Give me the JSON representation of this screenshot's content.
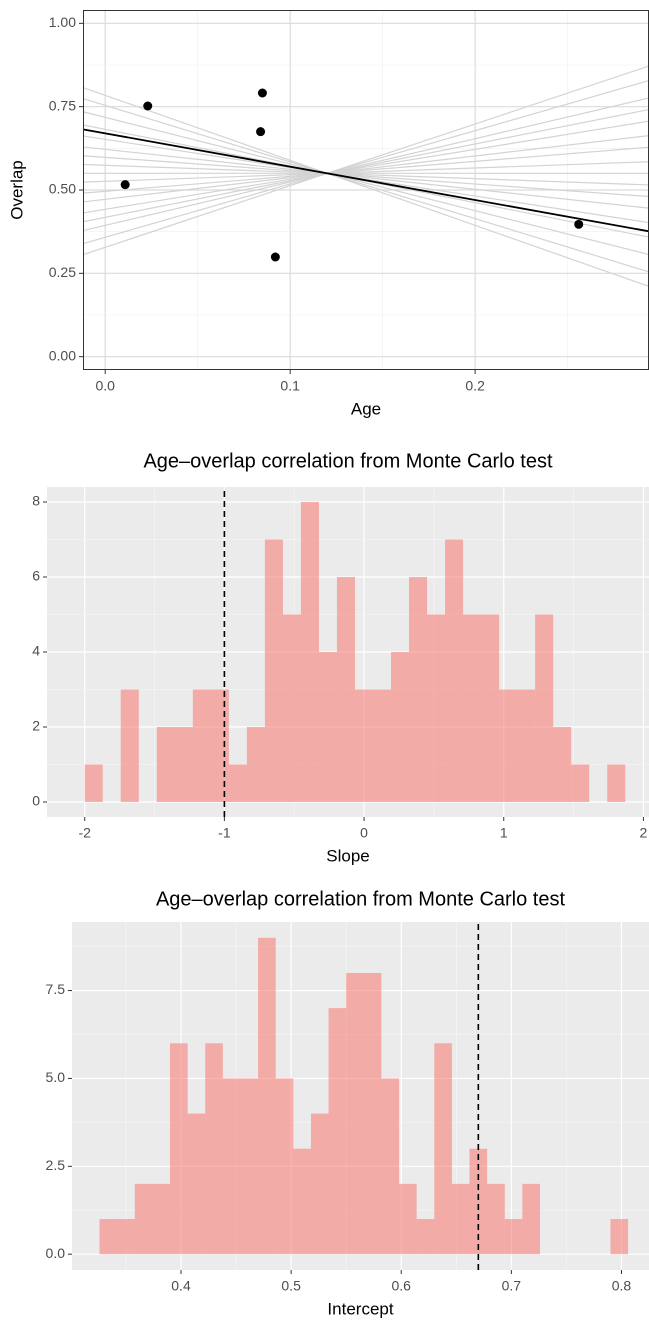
{
  "chart_data": [
    {
      "type": "scatter",
      "x_label": "Age",
      "y_label": "Overlap",
      "x": [
        0.0108,
        0.023,
        0.085,
        0.084,
        0.092,
        0.256
      ],
      "values": [
        0.516,
        0.752,
        0.791,
        0.675,
        0.299,
        0.397
      ],
      "color": "#000000",
      "xlim": [
        -0.012,
        0.294
      ],
      "ylim": [
        -0.04,
        1.04
      ],
      "xticks": [
        {
          "value": 0,
          "label": "0.0"
        },
        0.1,
        0.2
      ],
      "yticks": [
        {
          "value": 0,
          "label": "0.00"
        },
        0.25,
        {
          "value": 0.5,
          "label": "0.50"
        },
        0.75,
        {
          "value": 1,
          "label": "1.00"
        }
      ],
      "grid": true,
      "minor_grid": true,
      "fit_line": {
        "slope": -1.0,
        "intercept": 0.67,
        "color": "#000000"
      },
      "sample_lines": {
        "color": "#d3d3d3",
        "slopes": [
          -1.95,
          -1.7,
          -1.4,
          -1.1,
          -0.85,
          -0.6,
          -0.4,
          -0.2,
          0,
          0.2,
          0.45,
          0.65,
          0.9,
          1.1,
          1.3,
          1.6,
          1.85
        ],
        "intercepts": [
          0.784,
          0.754,
          0.718,
          0.682,
          0.652,
          0.622,
          0.598,
          0.574,
          0.55,
          0.526,
          0.496,
          0.472,
          0.442,
          0.418,
          0.394,
          0.358,
          0.328
        ]
      }
    },
    {
      "type": "histogram",
      "title": "Age–overlap correlation from Monte Carlo test",
      "x_label": "Slope",
      "bins": [
        -2,
        -1.871,
        -1.742,
        -1.613,
        -1.484,
        -1.355,
        -1.226,
        -1.097,
        -0.968,
        -0.839,
        -0.71,
        -0.581,
        -0.452,
        -0.323,
        -0.194,
        -0.065,
        0.064,
        0.193,
        0.322,
        0.451,
        0.58,
        0.709,
        0.838,
        0.967,
        1.096,
        1.225,
        1.354,
        1.483,
        1.612,
        1.741,
        1.87
      ],
      "values": [
        1,
        0,
        3,
        0,
        2,
        2,
        3,
        3,
        1,
        2,
        7,
        5,
        8,
        4,
        6,
        3,
        3,
        4,
        6,
        5,
        7,
        5,
        5,
        3,
        3,
        5,
        2,
        1,
        0,
        1
      ],
      "color": "#f8766d",
      "vline": -1,
      "xlim": [
        -2.27,
        2.04
      ],
      "ylim": [
        -0.4,
        8.4
      ],
      "xticks": [
        -2,
        -1,
        0,
        1,
        2
      ],
      "yticks": [
        0,
        2,
        4,
        6,
        8
      ],
      "grid": true,
      "minor_grid": true
    },
    {
      "type": "histogram",
      "title": "Age–overlap correlation from Monte Carlo test",
      "x_label": "Intercept",
      "bins": [
        0.326,
        0.342,
        0.358,
        0.374,
        0.39,
        0.406,
        0.422,
        0.438,
        0.454,
        0.47,
        0.486,
        0.502,
        0.518,
        0.534,
        0.55,
        0.566,
        0.582,
        0.598,
        0.614,
        0.63,
        0.646,
        0.662,
        0.678,
        0.694,
        0.71,
        0.726,
        0.742,
        0.758,
        0.774,
        0.79,
        0.806
      ],
      "values": [
        1,
        1,
        2,
        2,
        6,
        4,
        6,
        5,
        5,
        9,
        5,
        3,
        4,
        7,
        8,
        8,
        5,
        2,
        1,
        6,
        2,
        3,
        2,
        1,
        2,
        0,
        0,
        0,
        0,
        1
      ],
      "color": "#f8766d",
      "vline": 0.67,
      "xlim": [
        0.301,
        0.825
      ],
      "ylim": [
        -0.45,
        9.45
      ],
      "xticks": [
        0.4,
        0.5,
        0.6,
        0.7,
        0.8
      ],
      "yticks": [
        {
          "value": 0,
          "label": "0.0"
        },
        2.5,
        {
          "value": 5,
          "label": "5.0"
        },
        7.5
      ],
      "grid": true,
      "minor_grid": true
    }
  ]
}
